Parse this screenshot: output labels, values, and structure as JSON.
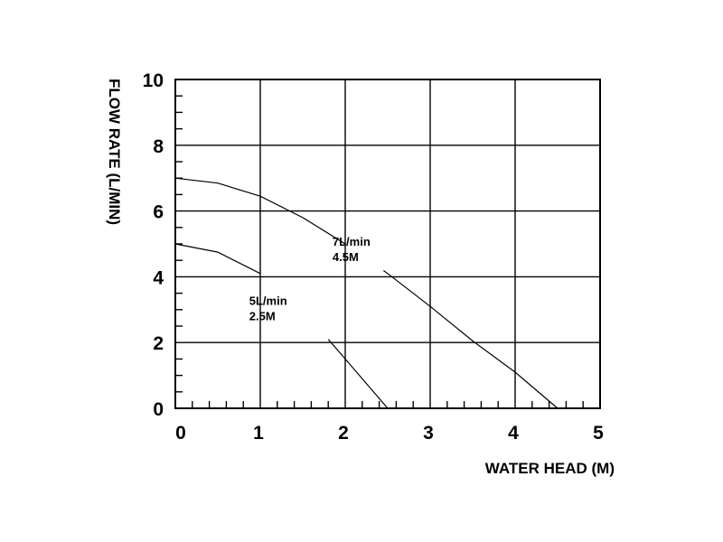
{
  "chart_data": {
    "type": "line",
    "title": "",
    "xlabel": "WATER HEAD (M)",
    "ylabel": "FLOW RATE (L/MIN)",
    "xlim": [
      0,
      5
    ],
    "ylim": [
      0,
      10
    ],
    "x_ticks": [
      0,
      1,
      2,
      3,
      4,
      5
    ],
    "y_ticks": [
      0,
      2,
      4,
      6,
      8,
      10
    ],
    "grid": true,
    "series": [
      {
        "label_lines": [
          "5L/min",
          "2.5M"
        ],
        "points": [
          [
            0,
            5.0
          ],
          [
            0.5,
            4.75
          ],
          [
            1.0,
            4.1
          ],
          [
            1.5,
            3.0
          ],
          [
            2.0,
            1.5
          ],
          [
            2.5,
            0
          ]
        ]
      },
      {
        "label_lines": [
          "7L/min",
          "4.5M"
        ],
        "points": [
          [
            0,
            7.0
          ],
          [
            0.5,
            6.85
          ],
          [
            1.0,
            6.45
          ],
          [
            1.5,
            5.8
          ],
          [
            2.0,
            5.0
          ],
          [
            2.5,
            4.1
          ],
          [
            3.0,
            3.1
          ],
          [
            3.5,
            2.05
          ],
          [
            4.0,
            1.1
          ],
          [
            4.5,
            0
          ]
        ]
      }
    ]
  }
}
